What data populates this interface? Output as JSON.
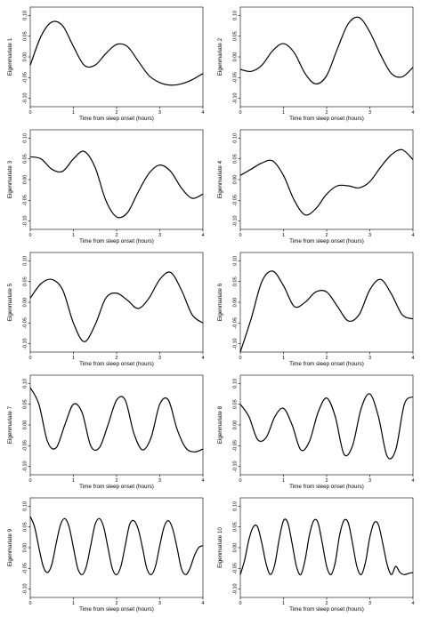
{
  "chart_data": [
    {
      "type": "line",
      "xlabel": "Time from sleep onset (hours)",
      "ylabel": "Eigenmariate 1",
      "xlim": [
        0,
        4
      ],
      "ylim": [
        -0.12,
        0.12
      ],
      "xticks": [
        0,
        1,
        2,
        3,
        4
      ],
      "yticks": [
        -0.1,
        -0.05,
        0.0,
        0.05,
        0.1
      ],
      "xtick_labels": [
        "0",
        "1",
        "2",
        "3",
        "4"
      ],
      "ytick_labels": [
        "-0.10",
        "-0.05",
        "0.00",
        "0.05",
        "0.10"
      ],
      "series": [
        {
          "x": [
            0,
            0.25,
            0.5,
            0.75,
            1.0,
            1.25,
            1.5,
            1.75,
            2.0,
            2.25,
            2.5,
            2.75,
            3.0,
            3.25,
            3.5,
            3.75,
            4.0
          ],
          "y": [
            -0.02,
            0.05,
            0.084,
            0.075,
            0.025,
            -0.02,
            -0.02,
            0.008,
            0.03,
            0.025,
            -0.01,
            -0.045,
            -0.062,
            -0.068,
            -0.065,
            -0.055,
            -0.04
          ]
        }
      ]
    },
    {
      "type": "line",
      "xlabel": "Time from sleep onset (hours)",
      "ylabel": "Eigenmariate 2",
      "xlim": [
        0,
        4
      ],
      "ylim": [
        -0.12,
        0.12
      ],
      "xticks": [
        0,
        1,
        2,
        3,
        4
      ],
      "yticks": [
        -0.1,
        -0.05,
        0.0,
        0.05,
        0.1
      ],
      "xtick_labels": [
        "0",
        "1",
        "2",
        "3",
        "4"
      ],
      "ytick_labels": [
        "-0.10",
        "-0.05",
        "0.00",
        "0.05",
        "0.10"
      ],
      "series": [
        {
          "x": [
            0,
            0.25,
            0.5,
            0.75,
            1.0,
            1.25,
            1.5,
            1.75,
            2.0,
            2.25,
            2.5,
            2.75,
            3.0,
            3.25,
            3.5,
            3.75,
            4.0
          ],
          "y": [
            -0.03,
            -0.035,
            -0.02,
            0.015,
            0.032,
            0.01,
            -0.04,
            -0.065,
            -0.045,
            0.02,
            0.08,
            0.095,
            0.06,
            0.005,
            -0.04,
            -0.048,
            -0.025
          ]
        }
      ]
    },
    {
      "type": "line",
      "xlabel": "Time from sleep onset (hours)",
      "ylabel": "Eigenmariate 3",
      "xlim": [
        0,
        4
      ],
      "ylim": [
        -0.12,
        0.12
      ],
      "xticks": [
        0,
        1,
        2,
        3,
        4
      ],
      "yticks": [
        -0.1,
        -0.05,
        0.0,
        0.05,
        0.1
      ],
      "xtick_labels": [
        "0",
        "1",
        "2",
        "3",
        "4"
      ],
      "ytick_labels": [
        "-0.10",
        "-0.05",
        "0.00",
        "0.05",
        "0.10"
      ],
      "series": [
        {
          "x": [
            0,
            0.25,
            0.5,
            0.75,
            1.0,
            1.25,
            1.5,
            1.75,
            2.0,
            2.25,
            2.5,
            2.75,
            3.0,
            3.25,
            3.5,
            3.75,
            4.0
          ],
          "y": [
            0.055,
            0.05,
            0.025,
            0.02,
            0.05,
            0.068,
            0.03,
            -0.05,
            -0.09,
            -0.08,
            -0.03,
            0.015,
            0.035,
            0.02,
            -0.02,
            -0.045,
            -0.035
          ]
        }
      ]
    },
    {
      "type": "line",
      "xlabel": "Time from sleep onset (hours)",
      "ylabel": "Eigenmariate 4",
      "xlim": [
        0,
        4
      ],
      "ylim": [
        -0.12,
        0.12
      ],
      "xticks": [
        0,
        1,
        2,
        3,
        4
      ],
      "yticks": [
        -0.1,
        -0.05,
        0.0,
        0.05,
        0.1
      ],
      "xtick_labels": [
        "0",
        "1",
        "2",
        "3",
        "4"
      ],
      "ytick_labels": [
        "-0.10",
        "-0.05",
        "0.00",
        "0.05",
        "0.10"
      ],
      "series": [
        {
          "x": [
            0,
            0.25,
            0.5,
            0.75,
            1.0,
            1.25,
            1.5,
            1.75,
            2.0,
            2.25,
            2.5,
            2.75,
            3.0,
            3.25,
            3.5,
            3.75,
            4.0
          ],
          "y": [
            0.01,
            0.025,
            0.04,
            0.045,
            0.01,
            -0.05,
            -0.085,
            -0.07,
            -0.035,
            -0.015,
            -0.015,
            -0.02,
            -0.005,
            0.03,
            0.06,
            0.072,
            0.048
          ]
        }
      ]
    },
    {
      "type": "line",
      "xlabel": "Time from sleep onset (hours)",
      "ylabel": "Eigenmariate 5",
      "xlim": [
        0,
        4
      ],
      "ylim": [
        -0.12,
        0.12
      ],
      "xticks": [
        0,
        1,
        2,
        3,
        4
      ],
      "yticks": [
        -0.1,
        -0.05,
        0.0,
        0.05,
        0.1
      ],
      "xtick_labels": [
        "0",
        "1",
        "2",
        "3",
        "4"
      ],
      "ytick_labels": [
        "-0.10",
        "-0.05",
        "0.00",
        "0.05",
        "0.10"
      ],
      "series": [
        {
          "x": [
            0,
            0.25,
            0.5,
            0.75,
            1.0,
            1.25,
            1.5,
            1.75,
            2.0,
            2.25,
            2.5,
            2.75,
            3.0,
            3.25,
            3.5,
            3.75,
            4.0
          ],
          "y": [
            0.01,
            0.045,
            0.055,
            0.03,
            -0.05,
            -0.095,
            -0.055,
            0.01,
            0.022,
            0.005,
            -0.015,
            0.01,
            0.055,
            0.072,
            0.03,
            -0.03,
            -0.05
          ]
        }
      ]
    },
    {
      "type": "line",
      "xlabel": "Time from sleep onset (hours)",
      "ylabel": "Eigenmariate 6",
      "xlim": [
        0,
        4
      ],
      "ylim": [
        -0.12,
        0.12
      ],
      "xticks": [
        0,
        1,
        2,
        3,
        4
      ],
      "yticks": [
        -0.1,
        -0.05,
        0.0,
        0.05,
        0.1
      ],
      "xtick_labels": [
        "0",
        "1",
        "2",
        "3",
        "4"
      ],
      "ytick_labels": [
        "-0.10",
        "-0.05",
        "0.00",
        "0.05",
        "0.10"
      ],
      "series": [
        {
          "x": [
            0,
            0.25,
            0.5,
            0.75,
            1.0,
            1.25,
            1.5,
            1.75,
            2.0,
            2.25,
            2.5,
            2.75,
            3.0,
            3.25,
            3.5,
            3.75,
            4.0
          ],
          "y": [
            -0.12,
            -0.04,
            0.05,
            0.075,
            0.04,
            -0.01,
            0.0,
            0.025,
            0.025,
            -0.01,
            -0.045,
            -0.03,
            0.03,
            0.055,
            0.02,
            -0.03,
            -0.04
          ]
        }
      ]
    },
    {
      "type": "line",
      "xlabel": "Time from sleep onset (hours)",
      "ylabel": "Eigenmariate 7",
      "xlim": [
        0,
        4
      ],
      "ylim": [
        -0.12,
        0.12
      ],
      "xticks": [
        0,
        1,
        2,
        3,
        4
      ],
      "yticks": [
        -0.1,
        -0.05,
        0.0,
        0.05,
        0.1
      ],
      "xtick_labels": [
        "0",
        "1",
        "2",
        "3",
        "4"
      ],
      "ytick_labels": [
        "-0.10",
        "-0.05",
        "0.00",
        "0.05",
        "0.10"
      ],
      "series": [
        {
          "x": [
            0,
            0.2,
            0.4,
            0.6,
            0.8,
            1.0,
            1.2,
            1.4,
            1.6,
            1.8,
            2.0,
            2.2,
            2.4,
            2.6,
            2.8,
            3.0,
            3.2,
            3.4,
            3.6,
            3.8,
            4.0
          ],
          "y": [
            0.09,
            0.05,
            -0.04,
            -0.055,
            0.0,
            0.05,
            0.03,
            -0.05,
            -0.055,
            0.0,
            0.06,
            0.06,
            -0.02,
            -0.06,
            -0.03,
            0.05,
            0.06,
            -0.01,
            -0.055,
            -0.065,
            -0.058
          ]
        }
      ]
    },
    {
      "type": "line",
      "xlabel": "Time from sleep onset (hours)",
      "ylabel": "Eigenmariate 8",
      "xlim": [
        0,
        4
      ],
      "ylim": [
        -0.12,
        0.12
      ],
      "xticks": [
        0,
        1,
        2,
        3,
        4
      ],
      "yticks": [
        -0.1,
        -0.05,
        0.0,
        0.05,
        0.1
      ],
      "xtick_labels": [
        "0",
        "1",
        "2",
        "3",
        "4"
      ],
      "ytick_labels": [
        "-0.10",
        "-0.05",
        "0.00",
        "0.05",
        "0.10"
      ],
      "series": [
        {
          "x": [
            0,
            0.2,
            0.4,
            0.6,
            0.8,
            1.0,
            1.2,
            1.4,
            1.6,
            1.8,
            2.0,
            2.2,
            2.4,
            2.6,
            2.8,
            3.0,
            3.2,
            3.4,
            3.6,
            3.8,
            4.0
          ],
          "y": [
            0.05,
            0.02,
            -0.035,
            -0.03,
            0.02,
            0.04,
            0.0,
            -0.06,
            -0.04,
            0.03,
            0.065,
            0.02,
            -0.07,
            -0.05,
            0.04,
            0.075,
            0.02,
            -0.075,
            -0.06,
            0.05,
            0.068
          ]
        }
      ]
    },
    {
      "type": "line",
      "xlabel": "Time from sleep onset (hours)",
      "ylabel": "Eigenmariate 9",
      "xlim": [
        0,
        4
      ],
      "ylim": [
        -0.12,
        0.12
      ],
      "xticks": [
        0,
        1,
        2,
        3,
        4
      ],
      "yticks": [
        -0.1,
        -0.05,
        0.0,
        0.05,
        0.1
      ],
      "xtick_labels": [
        "0",
        "1",
        "2",
        "3",
        "4"
      ],
      "ytick_labels": [
        "-0.10",
        "-0.05",
        "0.00",
        "0.05",
        "0.10"
      ],
      "series": [
        {
          "x": [
            0,
            0.1,
            0.2,
            0.3,
            0.4,
            0.5,
            0.6,
            0.7,
            0.8,
            0.9,
            1.0,
            1.1,
            1.2,
            1.3,
            1.4,
            1.5,
            1.6,
            1.7,
            1.8,
            1.9,
            2.0,
            2.1,
            2.2,
            2.3,
            2.4,
            2.5,
            2.6,
            2.7,
            2.8,
            2.9,
            3.0,
            3.1,
            3.2,
            3.3,
            3.4,
            3.5,
            3.6,
            3.7,
            3.8,
            3.9,
            4.0
          ],
          "y": [
            0.075,
            0.05,
            0.0,
            -0.045,
            -0.06,
            -0.04,
            0.01,
            0.055,
            0.07,
            0.05,
            0.0,
            -0.05,
            -0.065,
            -0.045,
            0.005,
            0.055,
            0.07,
            0.05,
            0.0,
            -0.05,
            -0.065,
            -0.045,
            0.005,
            0.055,
            0.065,
            0.045,
            0.0,
            -0.05,
            -0.065,
            -0.045,
            0.005,
            0.05,
            0.065,
            0.045,
            0.0,
            -0.05,
            -0.065,
            -0.05,
            -0.02,
            0.0,
            0.005
          ]
        }
      ]
    },
    {
      "type": "line",
      "xlabel": "Time from sleep onset (hours)",
      "ylabel": "Eigenmariate 10",
      "xlim": [
        0,
        4
      ],
      "ylim": [
        -0.12,
        0.12
      ],
      "xticks": [
        0,
        1,
        2,
        3,
        4
      ],
      "yticks": [
        -0.1,
        -0.05,
        0.0,
        0.05,
        0.1
      ],
      "xtick_labels": [
        "0",
        "1",
        "2",
        "3",
        "4"
      ],
      "ytick_labels": [
        "-0.10",
        "-0.05",
        "0.00",
        "0.05",
        "0.10"
      ],
      "series": [
        {
          "x": [
            0,
            0.1,
            0.2,
            0.3,
            0.4,
            0.5,
            0.6,
            0.7,
            0.8,
            0.9,
            1.0,
            1.1,
            1.2,
            1.3,
            1.4,
            1.5,
            1.6,
            1.7,
            1.8,
            1.9,
            2.0,
            2.1,
            2.2,
            2.3,
            2.4,
            2.5,
            2.6,
            2.7,
            2.8,
            2.9,
            3.0,
            3.1,
            3.2,
            3.3,
            3.4,
            3.5,
            3.6,
            3.7,
            3.8,
            3.9,
            4.0
          ],
          "y": [
            -0.065,
            -0.03,
            0.02,
            0.05,
            0.05,
            0.01,
            -0.04,
            -0.065,
            -0.04,
            0.02,
            0.065,
            0.06,
            0.01,
            -0.045,
            -0.065,
            -0.03,
            0.03,
            0.065,
            0.06,
            0.01,
            -0.045,
            -0.065,
            -0.035,
            0.03,
            0.065,
            0.06,
            0.01,
            -0.045,
            -0.065,
            -0.035,
            0.025,
            0.06,
            0.055,
            0.01,
            -0.04,
            -0.065,
            -0.045,
            -0.06,
            -0.065,
            -0.062,
            -0.06
          ]
        }
      ]
    }
  ]
}
